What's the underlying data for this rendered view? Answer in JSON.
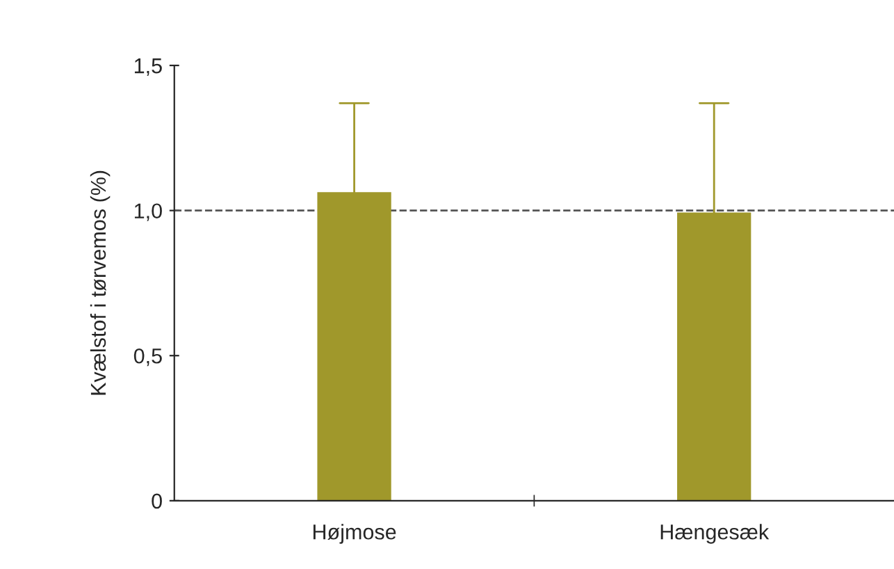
{
  "chart_data": {
    "type": "bar",
    "ylabel": "Kvælstof i tørvemos (%)",
    "categories": [
      "Højmose",
      "Hængesæk"
    ],
    "values": [
      1.06,
      0.99
    ],
    "errors": [
      [
        1.06,
        1.37
      ],
      [
        0.99,
        1.37
      ]
    ],
    "color": "#a0982b",
    "ylim": [
      0,
      1.5
    ],
    "yticks": [
      0,
      {
        "value": 0.5,
        "label": "0,5"
      },
      {
        "value": 1.0,
        "label": "1,0"
      },
      {
        "value": 1.5,
        "label": "1,5"
      }
    ],
    "ref_lines": [
      {
        "axis": "y",
        "value": 1.0,
        "color": "#555555",
        "line_style": "dashed"
      }
    ],
    "grid": false,
    "legend": false
  }
}
